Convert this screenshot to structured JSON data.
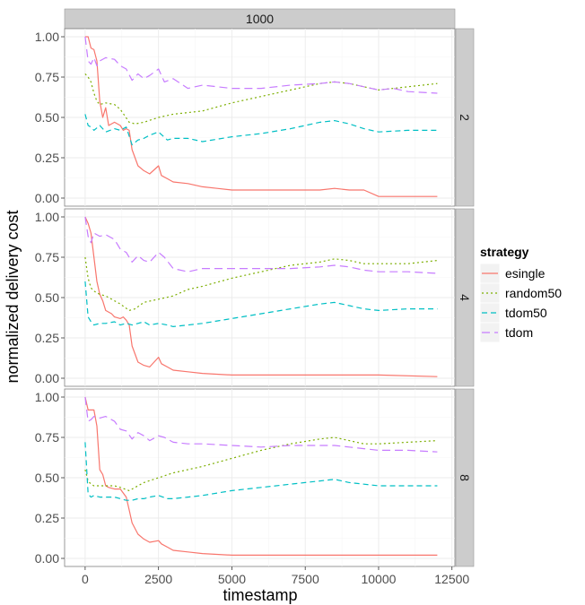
{
  "chart_data": {
    "type": "line",
    "title": "",
    "xlabel": "timestamp",
    "ylabel": "normalized delivery cost",
    "xlim": [
      -700,
      12600
    ],
    "ylim": [
      -0.05,
      1.05
    ],
    "x_ticks": [
      0,
      2500,
      5000,
      7500,
      10000,
      12500
    ],
    "x_tick_labels": [
      "0",
      "2500",
      "5000",
      "7500",
      "10000",
      "12500"
    ],
    "y_ticks": [
      0,
      0.25,
      0.5,
      0.75,
      1
    ],
    "y_tick_labels": [
      "0.00",
      "0.25",
      "0.50",
      "0.75",
      "1.00"
    ],
    "grid": true,
    "column_strip": "1000",
    "legend": {
      "title": "strategy",
      "position": "right",
      "entries": [
        {
          "name": "esingle",
          "color": "#F8766D",
          "dash": "solid"
        },
        {
          "name": "random50",
          "color": "#7CAE00",
          "dash": "dotted"
        },
        {
          "name": "tdom50",
          "color": "#00BFC4",
          "dash": "dashed"
        },
        {
          "name": "tdom",
          "color": "#C77CFF",
          "dash": "longdash"
        }
      ]
    },
    "panels": [
      {
        "strip": "2",
        "series": [
          {
            "name": "esingle",
            "x": [
              0,
              100,
              200,
              300,
              400,
              500,
              600,
              700,
              800,
              1000,
              1200,
              1300,
              1400,
              1500,
              1600,
              1800,
              2000,
              2200,
              2500,
              2600,
              2800,
              3000,
              3500,
              4000,
              4500,
              5000,
              6000,
              7000,
              8000,
              8500,
              9000,
              9500,
              10000,
              11000,
              12000
            ],
            "y": [
              1.0,
              1.0,
              0.93,
              0.92,
              0.85,
              0.6,
              0.5,
              0.56,
              0.45,
              0.47,
              0.45,
              0.42,
              0.43,
              0.42,
              0.3,
              0.2,
              0.17,
              0.15,
              0.2,
              0.14,
              0.12,
              0.1,
              0.09,
              0.07,
              0.06,
              0.05,
              0.05,
              0.05,
              0.05,
              0.06,
              0.05,
              0.05,
              0.01,
              0.01,
              0.01
            ]
          },
          {
            "name": "random50",
            "x": [
              0,
              100,
              200,
              300,
              400,
              500,
              700,
              1000,
              1200,
              1500,
              1700,
              2000,
              2500,
              3000,
              3500,
              4000,
              5000,
              6000,
              7000,
              8000,
              8500,
              9000,
              9500,
              10000,
              11000,
              12000
            ],
            "y": [
              0.77,
              0.75,
              0.72,
              0.65,
              0.6,
              0.58,
              0.59,
              0.58,
              0.55,
              0.47,
              0.46,
              0.47,
              0.5,
              0.52,
              0.53,
              0.54,
              0.59,
              0.63,
              0.67,
              0.71,
              0.72,
              0.71,
              0.69,
              0.67,
              0.69,
              0.71
            ]
          },
          {
            "name": "tdom50",
            "x": [
              0,
              100,
              200,
              300,
              500,
              700,
              1000,
              1200,
              1400,
              1600,
              1800,
              2000,
              2200,
              2500,
              2800,
              3000,
              3500,
              4000,
              5000,
              6000,
              7000,
              8000,
              8500,
              9000,
              9500,
              10000,
              11000,
              12000
            ],
            "y": [
              0.52,
              0.45,
              0.44,
              0.42,
              0.45,
              0.41,
              0.43,
              0.42,
              0.44,
              0.33,
              0.36,
              0.37,
              0.39,
              0.41,
              0.36,
              0.37,
              0.37,
              0.35,
              0.38,
              0.4,
              0.43,
              0.47,
              0.48,
              0.46,
              0.43,
              0.41,
              0.42,
              0.42
            ]
          },
          {
            "name": "tdom",
            "x": [
              0,
              100,
              200,
              300,
              400,
              500,
              700,
              1000,
              1200,
              1400,
              1600,
              1800,
              2000,
              2200,
              2500,
              2700,
              3000,
              3500,
              4000,
              5000,
              6000,
              7000,
              8000,
              8500,
              9000,
              9500,
              10000,
              10500,
              11000,
              12000
            ],
            "y": [
              1.0,
              0.85,
              0.83,
              0.87,
              0.82,
              0.85,
              0.87,
              0.86,
              0.82,
              0.8,
              0.73,
              0.77,
              0.74,
              0.76,
              0.8,
              0.72,
              0.74,
              0.68,
              0.7,
              0.68,
              0.68,
              0.7,
              0.71,
              0.72,
              0.71,
              0.69,
              0.67,
              0.68,
              0.66,
              0.65
            ]
          }
        ]
      },
      {
        "strip": "4",
        "series": [
          {
            "name": "esingle",
            "x": [
              0,
              100,
              200,
              300,
              400,
              500,
              600,
              700,
              900,
              1000,
              1200,
              1300,
              1400,
              1500,
              1600,
              1800,
              2000,
              2200,
              2500,
              2600,
              2800,
              3000,
              3500,
              4000,
              5000,
              7000,
              9000,
              10000,
              12000
            ],
            "y": [
              1.0,
              0.96,
              0.9,
              0.75,
              0.6,
              0.52,
              0.48,
              0.42,
              0.4,
              0.38,
              0.37,
              0.38,
              0.36,
              0.33,
              0.2,
              0.1,
              0.08,
              0.07,
              0.13,
              0.09,
              0.07,
              0.05,
              0.04,
              0.03,
              0.02,
              0.02,
              0.02,
              0.02,
              0.01
            ]
          },
          {
            "name": "random50",
            "x": [
              0,
              100,
              200,
              300,
              500,
              700,
              1000,
              1200,
              1500,
              1700,
              2000,
              2500,
              3000,
              3500,
              4000,
              5000,
              6000,
              7000,
              8000,
              8500,
              9000,
              9500,
              10000,
              11000,
              12000
            ],
            "y": [
              0.75,
              0.62,
              0.56,
              0.54,
              0.52,
              0.51,
              0.48,
              0.46,
              0.42,
              0.43,
              0.47,
              0.49,
              0.51,
              0.55,
              0.57,
              0.62,
              0.66,
              0.7,
              0.72,
              0.74,
              0.73,
              0.71,
              0.71,
              0.71,
              0.73
            ]
          },
          {
            "name": "tdom50",
            "x": [
              0,
              100,
              200,
              300,
              500,
              700,
              1000,
              1200,
              1400,
              1600,
              1800,
              2000,
              2200,
              2500,
              2800,
              3000,
              3500,
              4000,
              5000,
              6000,
              7000,
              8000,
              8500,
              9000,
              9500,
              10000,
              11000,
              12000
            ],
            "y": [
              0.6,
              0.38,
              0.35,
              0.33,
              0.34,
              0.34,
              0.35,
              0.33,
              0.34,
              0.33,
              0.34,
              0.35,
              0.33,
              0.34,
              0.33,
              0.32,
              0.33,
              0.34,
              0.37,
              0.4,
              0.43,
              0.46,
              0.47,
              0.45,
              0.43,
              0.42,
              0.43,
              0.43
            ]
          },
          {
            "name": "tdom",
            "x": [
              0,
              100,
              200,
              300,
              500,
              700,
              1000,
              1200,
              1400,
              1600,
              1800,
              2000,
              2200,
              2500,
              2700,
              3000,
              3500,
              4000,
              5000,
              6000,
              7000,
              8000,
              8500,
              9000,
              9500,
              10000,
              11000,
              12000
            ],
            "y": [
              1.0,
              0.88,
              0.84,
              0.9,
              0.88,
              0.89,
              0.86,
              0.8,
              0.78,
              0.72,
              0.76,
              0.73,
              0.72,
              0.78,
              0.75,
              0.68,
              0.66,
              0.68,
              0.68,
              0.68,
              0.68,
              0.69,
              0.7,
              0.69,
              0.67,
              0.66,
              0.66,
              0.65
            ]
          }
        ]
      },
      {
        "strip": "8",
        "series": [
          {
            "name": "esingle",
            "x": [
              0,
              100,
              200,
              300,
              400,
              500,
              600,
              700,
              800,
              1000,
              1200,
              1400,
              1500,
              1600,
              1800,
              2000,
              2200,
              2500,
              2600,
              2800,
              3000,
              3500,
              4000,
              5000,
              7000,
              10000,
              12000
            ],
            "y": [
              1.0,
              0.92,
              0.92,
              0.92,
              0.82,
              0.55,
              0.52,
              0.45,
              0.44,
              0.43,
              0.43,
              0.38,
              0.3,
              0.22,
              0.15,
              0.12,
              0.1,
              0.11,
              0.09,
              0.07,
              0.05,
              0.04,
              0.03,
              0.02,
              0.02,
              0.02,
              0.02
            ]
          },
          {
            "name": "random50",
            "x": [
              0,
              100,
              200,
              300,
              500,
              700,
              1000,
              1200,
              1500,
              1700,
              2000,
              2500,
              3000,
              3500,
              4000,
              5000,
              6000,
              7000,
              8000,
              8500,
              9000,
              9500,
              10000,
              11000,
              12000
            ],
            "y": [
              0.55,
              0.48,
              0.46,
              0.45,
              0.45,
              0.45,
              0.45,
              0.44,
              0.42,
              0.44,
              0.47,
              0.5,
              0.53,
              0.55,
              0.57,
              0.62,
              0.67,
              0.71,
              0.74,
              0.75,
              0.73,
              0.71,
              0.71,
              0.72,
              0.73
            ]
          },
          {
            "name": "tdom50",
            "x": [
              0,
              100,
              200,
              300,
              500,
              700,
              1000,
              1200,
              1400,
              1600,
              1800,
              2000,
              2200,
              2500,
              2800,
              3000,
              3500,
              4000,
              5000,
              6000,
              7000,
              8000,
              8500,
              9000,
              9500,
              10000,
              11000,
              12000
            ],
            "y": [
              0.72,
              0.4,
              0.38,
              0.39,
              0.38,
              0.38,
              0.38,
              0.37,
              0.36,
              0.36,
              0.37,
              0.37,
              0.38,
              0.39,
              0.37,
              0.37,
              0.38,
              0.39,
              0.42,
              0.44,
              0.46,
              0.48,
              0.49,
              0.47,
              0.46,
              0.45,
              0.45,
              0.45
            ]
          },
          {
            "name": "tdom",
            "x": [
              0,
              100,
              200,
              300,
              500,
              700,
              1000,
              1200,
              1400,
              1600,
              1800,
              2000,
              2200,
              2500,
              2700,
              3000,
              3500,
              4000,
              5000,
              6000,
              7000,
              8000,
              8500,
              9000,
              9500,
              10000,
              11000,
              12000
            ],
            "y": [
              1.0,
              0.85,
              0.86,
              0.88,
              0.87,
              0.88,
              0.85,
              0.8,
              0.79,
              0.74,
              0.78,
              0.76,
              0.73,
              0.76,
              0.75,
              0.72,
              0.71,
              0.71,
              0.7,
              0.69,
              0.7,
              0.7,
              0.7,
              0.69,
              0.68,
              0.67,
              0.67,
              0.66
            ]
          }
        ]
      }
    ]
  }
}
